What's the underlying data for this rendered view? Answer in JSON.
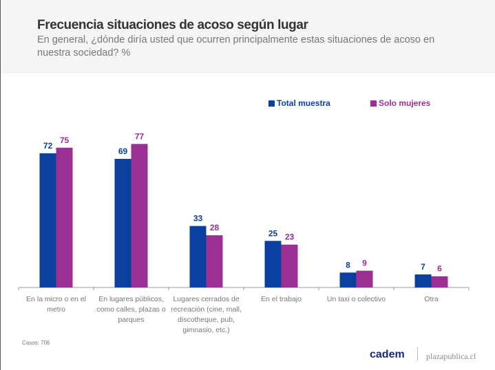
{
  "chart_data": {
    "type": "bar",
    "title": "Frecuencia situaciones de acoso según lugar",
    "subtitle": "En general, ¿dónde diría usted que ocurren principalmente estas situaciones de acoso en nuestra sociedad? %",
    "categories": [
      "En la micro o en el metro",
      "En lugares públicos, como calles, plazas o parques",
      "Lugares cerrados de recreación (cine, mall, discotheque, pub, gimnasio, etc.)",
      "En el trabajo",
      "Un taxi o colectivo",
      "Otra"
    ],
    "series": [
      {
        "name": "Total muestra",
        "color": "#0b3fa0",
        "values": [
          72,
          69,
          33,
          25,
          8,
          7
        ]
      },
      {
        "name": "Solo mujeres",
        "color": "#9b2f93",
        "values": [
          75,
          77,
          28,
          23,
          9,
          6
        ]
      }
    ],
    "ylim": [
      0,
      100
    ],
    "legend": "top-right",
    "grid": false
  },
  "footer": {
    "casos": "Casos: 706",
    "brand": "cadem",
    "site": "plazapublica.cl"
  }
}
